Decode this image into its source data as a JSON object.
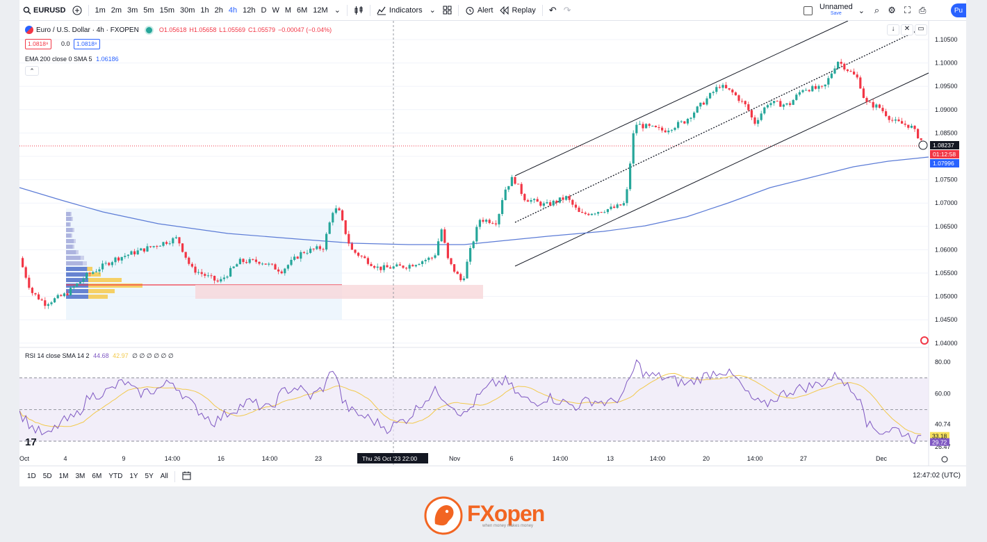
{
  "toolbar": {
    "symbol": "EURUSD",
    "timeframes": [
      "1m",
      "2m",
      "3m",
      "5m",
      "15m",
      "30m",
      "1h",
      "2h",
      "4h",
      "12h",
      "D",
      "W",
      "M",
      "6M",
      "12M"
    ],
    "active_timeframe": "4h",
    "indicators_label": "Indicators",
    "alert_label": "Alert",
    "replay_label": "Replay",
    "layout_name": "Unnamed",
    "save_label": "Save",
    "publish_label": "Pu"
  },
  "legend": {
    "title": "Euro / U.S. Dollar · 4h · FXOPEN",
    "open": "O1.05618",
    "high": "H1.05658",
    "low": "L1.05569",
    "close": "C1.05579",
    "change": "−0.00047 (−0.04%)",
    "bid": "1.0818⁸",
    "spread": "0.0",
    "ask": "1.0818⁸",
    "ema_label": "EMA 200 close 0 SMA 5",
    "ema_value": "1.06186",
    "rsi_label": "RSI 14 close SMA 14 2",
    "rsi_value": "44.68",
    "rsi_sma": "42.97",
    "rsi_extra": "∅ ∅ ∅ ∅ ∅ ∅"
  },
  "price_axis": [
    "1.10500",
    "1.10000",
    "1.09500",
    "1.09000",
    "1.08500",
    "1.08000",
    "1.07500",
    "1.07000",
    "1.06500",
    "1.06000",
    "1.05500",
    "1.05000",
    "1.04500",
    "1.04000"
  ],
  "price_tags": {
    "last": "1.08237",
    "countdown": "01:12:58",
    "ema": "1.07996"
  },
  "rsi_axis": [
    "80.00",
    "60.00",
    "40.74",
    "26.47"
  ],
  "rsi_tags": {
    "rsi": "29.72",
    "sma": "33.18"
  },
  "time_axis": [
    "Oct",
    "4",
    "9",
    "14:00",
    "16",
    "14:00",
    "23",
    "Nov",
    "6",
    "14:00",
    "13",
    "14:00",
    "20",
    "14:00",
    "27",
    "Dec"
  ],
  "crosshair_time": "Thu 26 Oct '23   22:00",
  "ranges": [
    "1D",
    "5D",
    "1M",
    "3M",
    "6M",
    "YTD",
    "1Y",
    "5Y",
    "All"
  ],
  "clock": "12:47:02 (UTC)",
  "brand": {
    "name": "FXopen",
    "tagline": "when money makes money"
  },
  "colors": {
    "up": "#26a69a",
    "down": "#f23645",
    "ema": "#5b7bd6",
    "rsi": "#7e57c2",
    "rsi_sma": "#f2c94c",
    "accent": "#2962ff"
  }
}
